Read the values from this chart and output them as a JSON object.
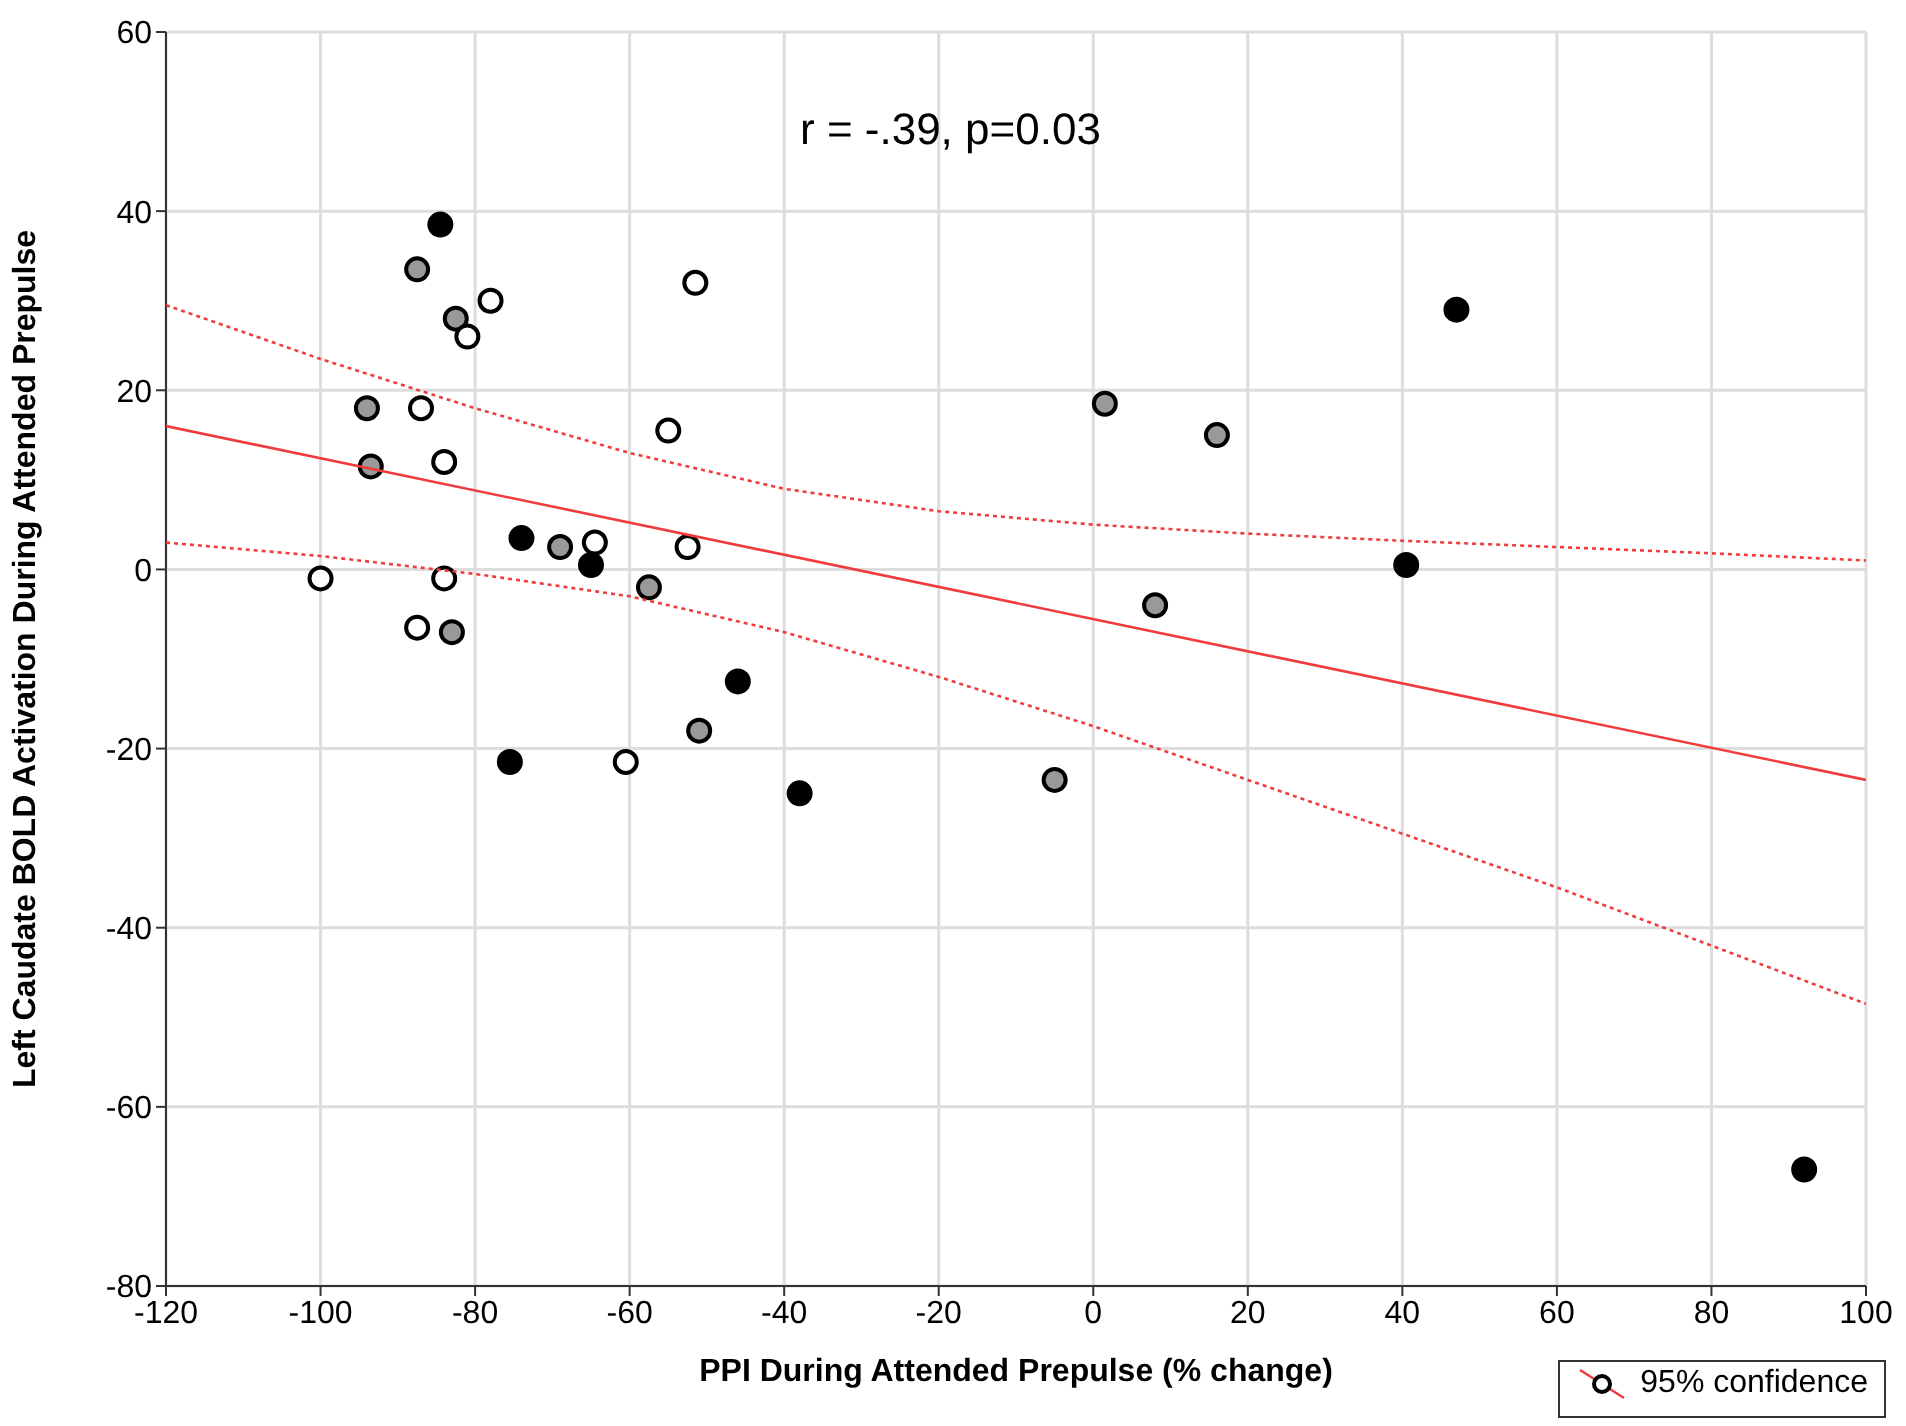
{
  "chart_data": {
    "type": "scatter",
    "xlabel": "PPI During Attended Prepulse (% change)",
    "ylabel": "Left Caudate BOLD Activation During Attended Prepulse",
    "annotations": [
      "r = -.39, p=0.03"
    ],
    "xlim": [
      -120,
      100
    ],
    "xticks": [
      -120,
      -100,
      -80,
      -60,
      -40,
      -20,
      0,
      20,
      40,
      60,
      80,
      100
    ],
    "ylim": [
      -80,
      60
    ],
    "yticks": [
      -80,
      -60,
      -40,
      -20,
      0,
      20,
      40,
      60
    ],
    "grid": true,
    "legend": "bottom right",
    "series": [
      {
        "marker": "circle",
        "x": [
          -100,
          -94,
          -93.5,
          -87.5,
          -87,
          -87.5,
          -84.5,
          -84,
          -84,
          -83,
          -82.5,
          -81,
          -78,
          -74,
          -75.5,
          -69,
          -64.5,
          -65,
          -60.5,
          -57.5,
          -55,
          -52.5,
          -51.5,
          -51,
          -46,
          -38,
          -5,
          1.5,
          8,
          16,
          40.5,
          47,
          92
        ],
        "values": [
          -1,
          18,
          11.5,
          33.5,
          18,
          -6.5,
          38.5,
          12,
          -1,
          -7,
          28,
          26,
          30,
          3.5,
          -21.5,
          2.5,
          3,
          0.5,
          -21.5,
          -2,
          15.5,
          2.5,
          32,
          -18,
          -12.5,
          -25,
          -23.5,
          18.5,
          -4,
          15,
          0.5,
          29,
          -67
        ],
        "colors": [
          "#ffffff",
          "#999999",
          "#999999",
          "#999999",
          "#ffffff",
          "#ffffff",
          "#000000",
          "#ffffff",
          "#ffffff",
          "#999999",
          "#999999",
          "#ffffff",
          "#ffffff",
          "#000000",
          "#000000",
          "#999999",
          "#ffffff",
          "#000000",
          "#ffffff",
          "#999999",
          "#ffffff",
          "#ffffff",
          "#ffffff",
          "#999999",
          "#000000",
          "#000000",
          "#999999",
          "#999999",
          "#999999",
          "#999999",
          "#000000",
          "#000000",
          "#000000"
        ]
      },
      {
        "type": "line",
        "name": "95% confidence",
        "color": "#f03c3c",
        "marker": "none",
        "line_style": "solid",
        "x": [
          -120,
          100
        ],
        "values": [
          16,
          -23.5
        ]
      },
      {
        "type": "line",
        "color": "#f03c3c",
        "marker": "none",
        "line_style": "dotted",
        "x": [
          -120,
          -100,
          -80,
          -60,
          -40,
          -20,
          0,
          20,
          40,
          60,
          80,
          100
        ],
        "values": [
          29.5,
          23.5,
          18,
          13,
          9,
          6.5,
          5,
          4,
          3.2,
          2.5,
          1.8,
          1
        ]
      },
      {
        "type": "line",
        "color": "#f03c3c",
        "marker": "none",
        "line_style": "dotted",
        "x": [
          -120,
          -100,
          -80,
          -60,
          -40,
          -20,
          0,
          20,
          40,
          60,
          80,
          100
        ],
        "values": [
          3,
          1.5,
          -0.5,
          -3,
          -7,
          -12,
          -17.5,
          -23.5,
          -29.5,
          -35.5,
          -42,
          -48.5
        ]
      }
    ]
  }
}
